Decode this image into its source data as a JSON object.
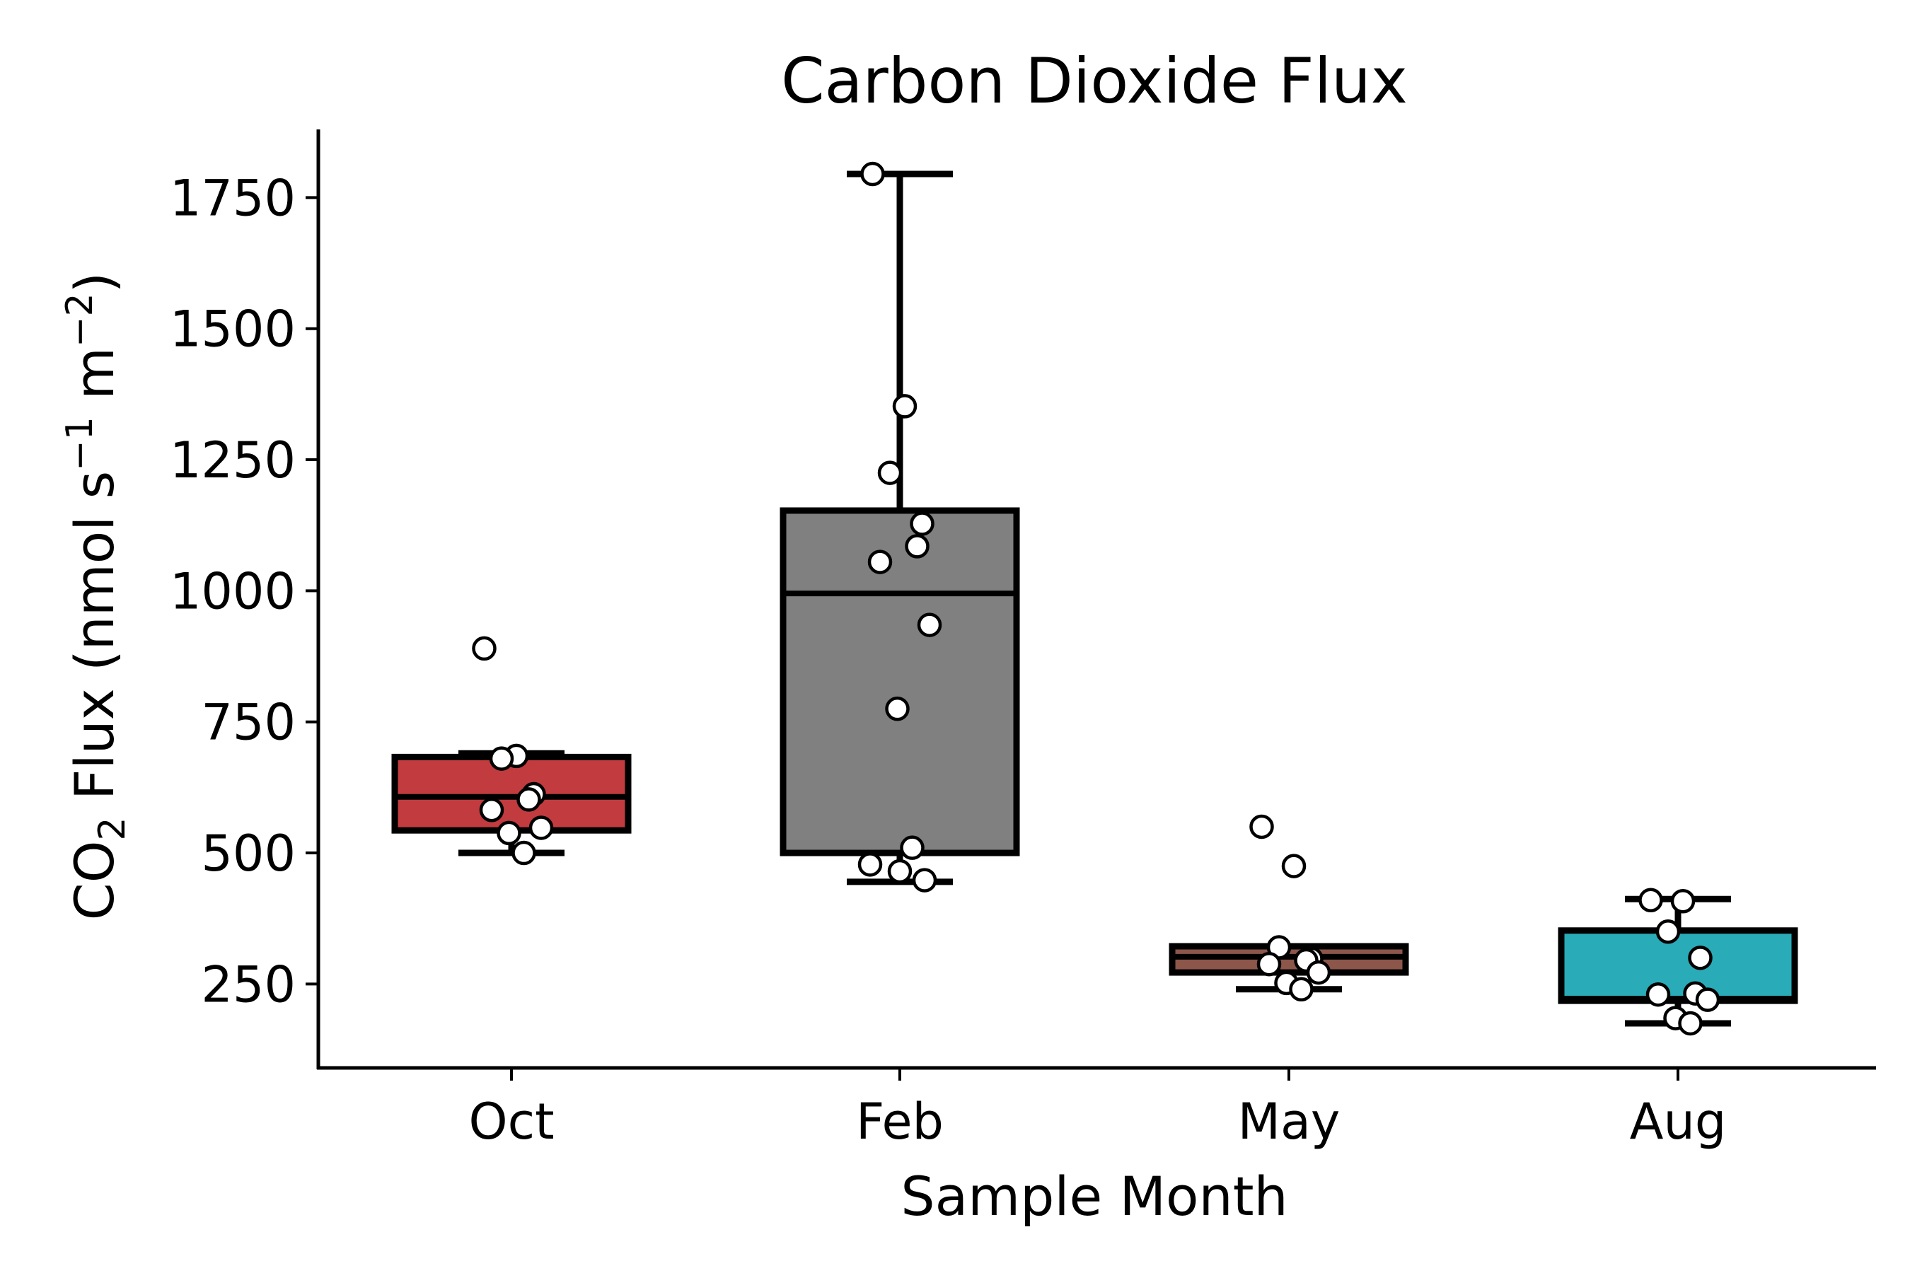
{
  "chart_data": {
    "type": "box",
    "title": "Carbon Dioxide Flux",
    "xlabel": "Sample Month",
    "ylabel": {
      "prefix": "CO",
      "subscript": "2",
      "rest": " Flux (nmol s",
      "sup1": "−1",
      "mid": " m",
      "sup2": "−2",
      "end": ")"
    },
    "categories": [
      "Oct",
      "Feb",
      "May",
      "Aug"
    ],
    "colors": [
      "#c23b3f",
      "#808080",
      "#8c564b",
      "#2aabb8"
    ],
    "yticks": [
      250,
      500,
      750,
      1000,
      1250,
      1500,
      1750
    ],
    "ylim": [
      90,
      1880
    ],
    "grid": false,
    "boxes": [
      {
        "category": "Oct",
        "whisker_low": 500,
        "q1": 543,
        "median": 607,
        "q3": 683,
        "whisker_high": 690
      },
      {
        "category": "Feb",
        "whisker_low": 445,
        "q1": 500,
        "median": 995,
        "q3": 1153,
        "whisker_high": 1795
      },
      {
        "category": "May",
        "whisker_low": 240,
        "q1": 272,
        "median": 302,
        "q3": 322,
        "whisker_high": 322
      },
      {
        "category": "Aug",
        "whisker_low": 175,
        "q1": 218,
        "median": 222,
        "q3": 352,
        "whisker_high": 412
      }
    ],
    "points": [
      {
        "category": "Oct",
        "values": [
          890,
          685,
          680,
          612,
          602,
          582,
          548,
          538,
          500
        ]
      },
      {
        "category": "Feb",
        "values": [
          1795,
          1352,
          1225,
          1128,
          1085,
          1055,
          935,
          775,
          510,
          478,
          465,
          448
        ]
      },
      {
        "category": "May",
        "values": [
          550,
          475,
          320,
          298,
          295,
          288,
          272,
          252,
          240
        ]
      },
      {
        "category": "Aug",
        "values": [
          410,
          408,
          350,
          300,
          232,
          230,
          220,
          185,
          175
        ]
      }
    ]
  }
}
